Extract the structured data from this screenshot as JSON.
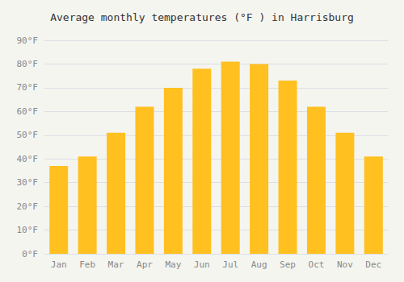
{
  "chart_data": {
    "type": "bar",
    "title": "Average monthly temperatures (°F ) in Harrisburg",
    "categories": [
      "Jan",
      "Feb",
      "Mar",
      "Apr",
      "May",
      "Jun",
      "Jul",
      "Aug",
      "Sep",
      "Oct",
      "Nov",
      "Dec"
    ],
    "values": [
      37,
      41,
      51,
      62,
      70,
      78,
      81,
      80,
      73,
      62,
      51,
      41
    ],
    "color": "#FFC020",
    "ylim": [
      0,
      90
    ],
    "yticks": [
      {
        "value": 0,
        "label": "0°F"
      },
      {
        "value": 10,
        "label": "10°F"
      },
      {
        "value": 20,
        "label": "20°F"
      },
      {
        "value": 30,
        "label": "30°F"
      },
      {
        "value": 40,
        "label": "40°F"
      },
      {
        "value": 50,
        "label": "50°F"
      },
      {
        "value": 60,
        "label": "60°F"
      },
      {
        "value": 70,
        "label": "70°F"
      },
      {
        "value": 80,
        "label": "80°F"
      },
      {
        "value": 90,
        "label": "90°F"
      }
    ],
    "grid": true
  }
}
